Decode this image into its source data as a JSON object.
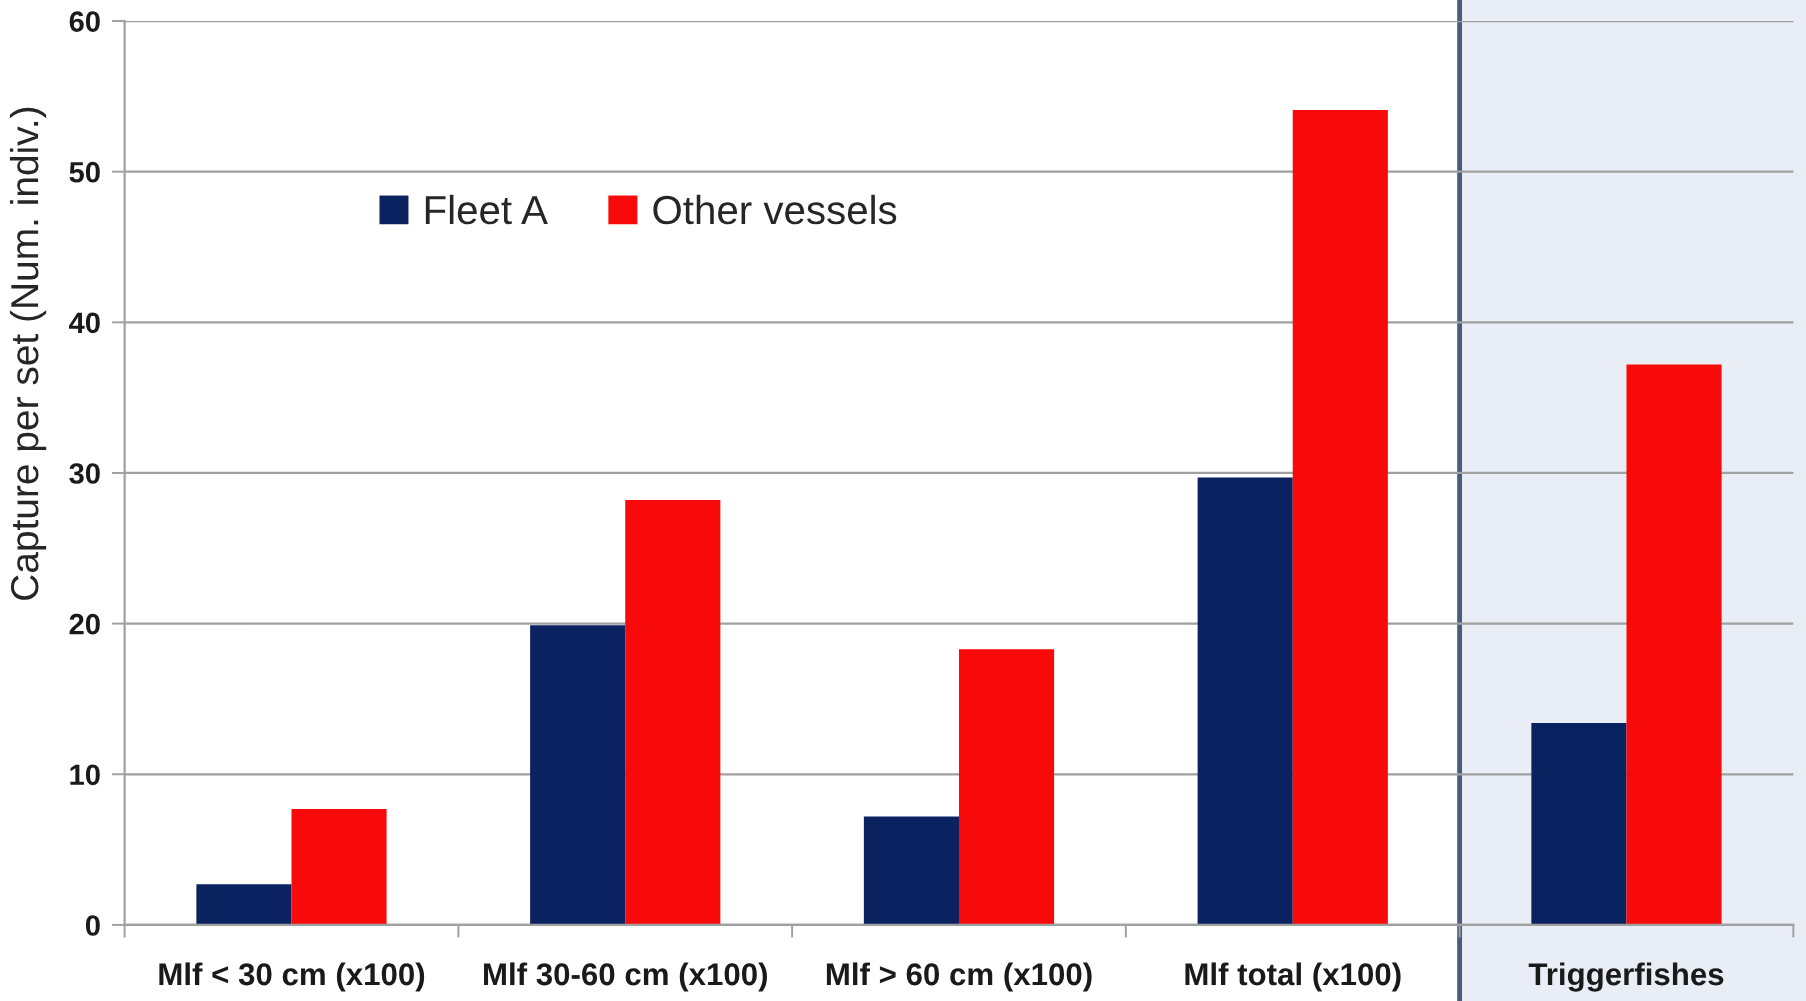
{
  "chart_data": {
    "type": "bar",
    "ylabel": "Capture per set (Num. indiv.)",
    "categories": [
      "Mlf < 30 cm (x100)",
      "Mlf 30-60 cm (x100)",
      "Mlf > 60 cm (x100)",
      "Mlf total (x100)",
      "Triggerfishes"
    ],
    "series": [
      {
        "name": "Fleet A",
        "color": "#0b2260",
        "values": [
          2.7,
          19.9,
          7.2,
          29.7,
          13.4
        ]
      },
      {
        "name": "Other vessels",
        "color": "#f80a0a",
        "values": [
          7.7,
          28.2,
          18.3,
          54.1,
          37.2
        ]
      }
    ],
    "ylim": [
      0,
      60
    ],
    "yticks": [
      0,
      10,
      20,
      30,
      40,
      50,
      60
    ],
    "grid": "y",
    "legend": "top left",
    "bands": [
      {
        "axis": "x",
        "from": "Triggerfishes",
        "to": "Triggerfishes",
        "color": "#e9eef6"
      }
    ]
  }
}
